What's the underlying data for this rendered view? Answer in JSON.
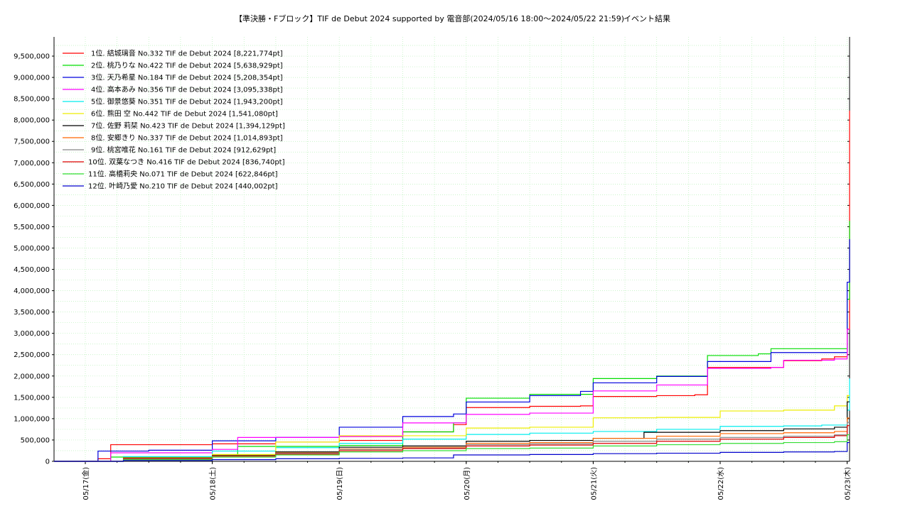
{
  "chart_data": {
    "type": "line",
    "title": "【準決勝・Fブロック】TIF de Debut 2024 supported by 電音部(2024/05/16 18:00〜2024/05/22 21:59)",
    "subtitle": "イベント結果",
    "xlabel": "",
    "ylabel": "",
    "x_tick_labels": [
      "05/17(金)",
      "05/18(土)",
      "05/19(日)",
      "05/20(月)",
      "05/21(火)",
      "05/22(水)",
      "05/23(木)"
    ],
    "y_tick_labels": [
      "0",
      "500,000",
      "1,000,000",
      "1,500,000",
      "2,000,000",
      "2,500,000",
      "3,000,000",
      "3,500,000",
      "4,000,000",
      "4,500,000",
      "5,000,000",
      "5,500,000",
      "6,000,000",
      "6,500,000",
      "7,000,000",
      "7,500,000",
      "8,000,000",
      "8,500,000",
      "9,000,000",
      "9,500,000"
    ],
    "x_range_days": [
      0,
      6.3
    ],
    "ylim": [
      0,
      9950000
    ],
    "grid": true,
    "legend_position": "top-left",
    "series": [
      {
        "name": "1位. 結城璃音 No.332 TIF de Debut 2024 [8,221,774pt]",
        "color": "#ff0000",
        "points": [
          [
            0,
            0
          ],
          [
            0.1,
            60000
          ],
          [
            0.2,
            390000
          ],
          [
            1.0,
            410000
          ],
          [
            1.5,
            450000
          ],
          [
            2.0,
            490000
          ],
          [
            2.5,
            690000
          ],
          [
            2.9,
            860000
          ],
          [
            3.0,
            1260000
          ],
          [
            3.5,
            1290000
          ],
          [
            3.9,
            1300000
          ],
          [
            4.0,
            1520000
          ],
          [
            4.5,
            1540000
          ],
          [
            4.8,
            1560000
          ],
          [
            4.9,
            2200000
          ],
          [
            5.5,
            2360000
          ],
          [
            5.8,
            2400000
          ],
          [
            5.9,
            2450000
          ],
          [
            6.0,
            3100000
          ],
          [
            6.02,
            8221774
          ],
          [
            6.3,
            8221774
          ]
        ]
      },
      {
        "name": "2位. 桃乃りな No.422 TIF de Debut 2024 [5,638,929pt]",
        "color": "#00dd00",
        "points": [
          [
            0,
            0
          ],
          [
            0.2,
            100000
          ],
          [
            1.0,
            140000
          ],
          [
            1.2,
            350000
          ],
          [
            2.0,
            370000
          ],
          [
            2.5,
            690000
          ],
          [
            2.9,
            900000
          ],
          [
            3.0,
            1480000
          ],
          [
            3.5,
            1570000
          ],
          [
            4.0,
            1940000
          ],
          [
            4.5,
            2000000
          ],
          [
            4.9,
            2480000
          ],
          [
            5.3,
            2520000
          ],
          [
            5.4,
            2640000
          ],
          [
            5.9,
            2640000
          ],
          [
            6.0,
            3800000
          ],
          [
            6.02,
            5638929
          ],
          [
            6.3,
            5638929
          ]
        ]
      },
      {
        "name": "3位. 天乃希星 No.184 TIF de Debut 2024 [5,208,354pt]",
        "color": "#0000dd",
        "points": [
          [
            0,
            0
          ],
          [
            0.1,
            240000
          ],
          [
            0.5,
            260000
          ],
          [
            1.0,
            480000
          ],
          [
            1.5,
            560000
          ],
          [
            2.0,
            800000
          ],
          [
            2.5,
            1050000
          ],
          [
            2.9,
            1110000
          ],
          [
            3.0,
            1390000
          ],
          [
            3.5,
            1540000
          ],
          [
            3.9,
            1640000
          ],
          [
            4.0,
            1840000
          ],
          [
            4.5,
            1990000
          ],
          [
            4.9,
            2340000
          ],
          [
            5.4,
            2550000
          ],
          [
            5.9,
            2550000
          ],
          [
            6.0,
            4200000
          ],
          [
            6.02,
            5208354
          ],
          [
            6.3,
            5208354
          ]
        ]
      },
      {
        "name": "4位. 高本あみ No.356 TIF de Debut 2024 [3,095,338pt]",
        "color": "#ff00ff",
        "points": [
          [
            0,
            0
          ],
          [
            0.2,
            200000
          ],
          [
            1.0,
            280000
          ],
          [
            1.2,
            560000
          ],
          [
            2.0,
            580000
          ],
          [
            2.5,
            900000
          ],
          [
            3.0,
            1100000
          ],
          [
            3.5,
            1130000
          ],
          [
            4.0,
            1650000
          ],
          [
            4.5,
            1790000
          ],
          [
            4.9,
            2180000
          ],
          [
            5.4,
            2200000
          ],
          [
            5.5,
            2370000
          ],
          [
            5.9,
            2400000
          ],
          [
            6.0,
            3095338
          ],
          [
            6.3,
            3095338
          ]
        ]
      },
      {
        "name": "5位. 御景悠葵 No.351 TIF de Debut 2024 [1,943,200pt]",
        "color": "#00eeee",
        "points": [
          [
            0,
            0
          ],
          [
            0.3,
            110000
          ],
          [
            1.0,
            240000
          ],
          [
            1.5,
            320000
          ],
          [
            2.0,
            420000
          ],
          [
            2.5,
            520000
          ],
          [
            3.0,
            630000
          ],
          [
            3.5,
            660000
          ],
          [
            4.0,
            700000
          ],
          [
            4.5,
            750000
          ],
          [
            5.0,
            820000
          ],
          [
            5.5,
            830000
          ],
          [
            5.8,
            850000
          ],
          [
            6.0,
            1200000
          ],
          [
            6.02,
            1943200
          ],
          [
            6.3,
            1943200
          ]
        ]
      },
      {
        "name": "6位. 熊田 空 No.442 TIF de Debut 2024 [1,541,080pt]",
        "color": "#eeee00",
        "points": [
          [
            0,
            0
          ],
          [
            0.3,
            90000
          ],
          [
            1.0,
            160000
          ],
          [
            1.5,
            450000
          ],
          [
            2.0,
            600000
          ],
          [
            2.5,
            600000
          ],
          [
            3.0,
            780000
          ],
          [
            3.5,
            800000
          ],
          [
            4.0,
            1020000
          ],
          [
            4.5,
            1030000
          ],
          [
            5.0,
            1180000
          ],
          [
            5.5,
            1200000
          ],
          [
            5.9,
            1300000
          ],
          [
            6.0,
            1541080
          ],
          [
            6.3,
            1541080
          ]
        ]
      },
      {
        "name": "7位. 佐野 莉栞 No.423 TIF de Debut 2024 [1,394,129pt]",
        "color": "#000000",
        "points": [
          [
            0,
            0
          ],
          [
            0.3,
            80000
          ],
          [
            1.0,
            140000
          ],
          [
            1.5,
            220000
          ],
          [
            2.0,
            330000
          ],
          [
            2.5,
            360000
          ],
          [
            3.0,
            470000
          ],
          [
            3.5,
            490000
          ],
          [
            4.0,
            540000
          ],
          [
            4.4,
            680000
          ],
          [
            5.0,
            720000
          ],
          [
            5.5,
            760000
          ],
          [
            5.9,
            800000
          ],
          [
            6.0,
            1394129
          ],
          [
            6.3,
            1394129
          ]
        ]
      },
      {
        "name": "8位. 安郷きり No.337 TIF de Debut 2024 [1,014,893pt]",
        "color": "#ff6600",
        "points": [
          [
            0,
            0
          ],
          [
            0.3,
            70000
          ],
          [
            1.0,
            130000
          ],
          [
            1.5,
            200000
          ],
          [
            2.0,
            290000
          ],
          [
            2.5,
            330000
          ],
          [
            3.0,
            420000
          ],
          [
            3.5,
            440000
          ],
          [
            4.0,
            540000
          ],
          [
            4.5,
            590000
          ],
          [
            5.0,
            650000
          ],
          [
            5.5,
            670000
          ],
          [
            5.9,
            700000
          ],
          [
            6.0,
            1014893
          ],
          [
            6.3,
            1014893
          ]
        ]
      },
      {
        "name": "9位. 桃宮唯花 No.161 TIF de Debut 2024 [912,629pt]",
        "color": "#888888",
        "points": [
          [
            0,
            0
          ],
          [
            0.3,
            60000
          ],
          [
            1.0,
            120000
          ],
          [
            1.5,
            190000
          ],
          [
            2.0,
            280000
          ],
          [
            2.5,
            310000
          ],
          [
            3.0,
            390000
          ],
          [
            3.5,
            410000
          ],
          [
            4.0,
            470000
          ],
          [
            4.5,
            520000
          ],
          [
            5.0,
            560000
          ],
          [
            5.5,
            590000
          ],
          [
            5.9,
            620000
          ],
          [
            6.0,
            912629
          ],
          [
            6.3,
            912629
          ]
        ]
      },
      {
        "name": "10位. 双葉なつき No.416 TIF de Debut 2024 [836,740pt]",
        "color": "#dd0000",
        "points": [
          [
            0,
            0
          ],
          [
            0.3,
            50000
          ],
          [
            1.0,
            110000
          ],
          [
            1.5,
            170000
          ],
          [
            2.0,
            250000
          ],
          [
            2.5,
            300000
          ],
          [
            3.0,
            360000
          ],
          [
            3.5,
            380000
          ],
          [
            4.0,
            420000
          ],
          [
            4.5,
            470000
          ],
          [
            5.0,
            520000
          ],
          [
            5.5,
            560000
          ],
          [
            5.9,
            600000
          ],
          [
            6.0,
            836740
          ],
          [
            6.3,
            836740
          ]
        ]
      },
      {
        "name": "11位. 高橋莉央 No.071 TIF de Debut 2024 [622,846pt]",
        "color": "#33dd33",
        "points": [
          [
            0,
            0
          ],
          [
            0.3,
            40000
          ],
          [
            1.0,
            100000
          ],
          [
            1.5,
            150000
          ],
          [
            2.0,
            220000
          ],
          [
            2.5,
            250000
          ],
          [
            3.0,
            300000
          ],
          [
            3.5,
            310000
          ],
          [
            4.0,
            360000
          ],
          [
            4.5,
            390000
          ],
          [
            5.0,
            420000
          ],
          [
            5.5,
            440000
          ],
          [
            5.9,
            460000
          ],
          [
            6.0,
            622846
          ],
          [
            6.3,
            622846
          ]
        ]
      },
      {
        "name": "12位. 叶崎乃愛 No.210 TIF de Debut 2024 [440,002pt]",
        "color": "#0000cc",
        "points": [
          [
            0,
            0
          ],
          [
            0.3,
            20000
          ],
          [
            1.0,
            40000
          ],
          [
            1.5,
            60000
          ],
          [
            2.0,
            70000
          ],
          [
            2.5,
            80000
          ],
          [
            2.9,
            150000
          ],
          [
            3.5,
            160000
          ],
          [
            4.0,
            180000
          ],
          [
            4.5,
            190000
          ],
          [
            5.0,
            210000
          ],
          [
            5.5,
            220000
          ],
          [
            5.9,
            230000
          ],
          [
            6.0,
            440002
          ],
          [
            6.3,
            440002
          ]
        ]
      }
    ]
  }
}
